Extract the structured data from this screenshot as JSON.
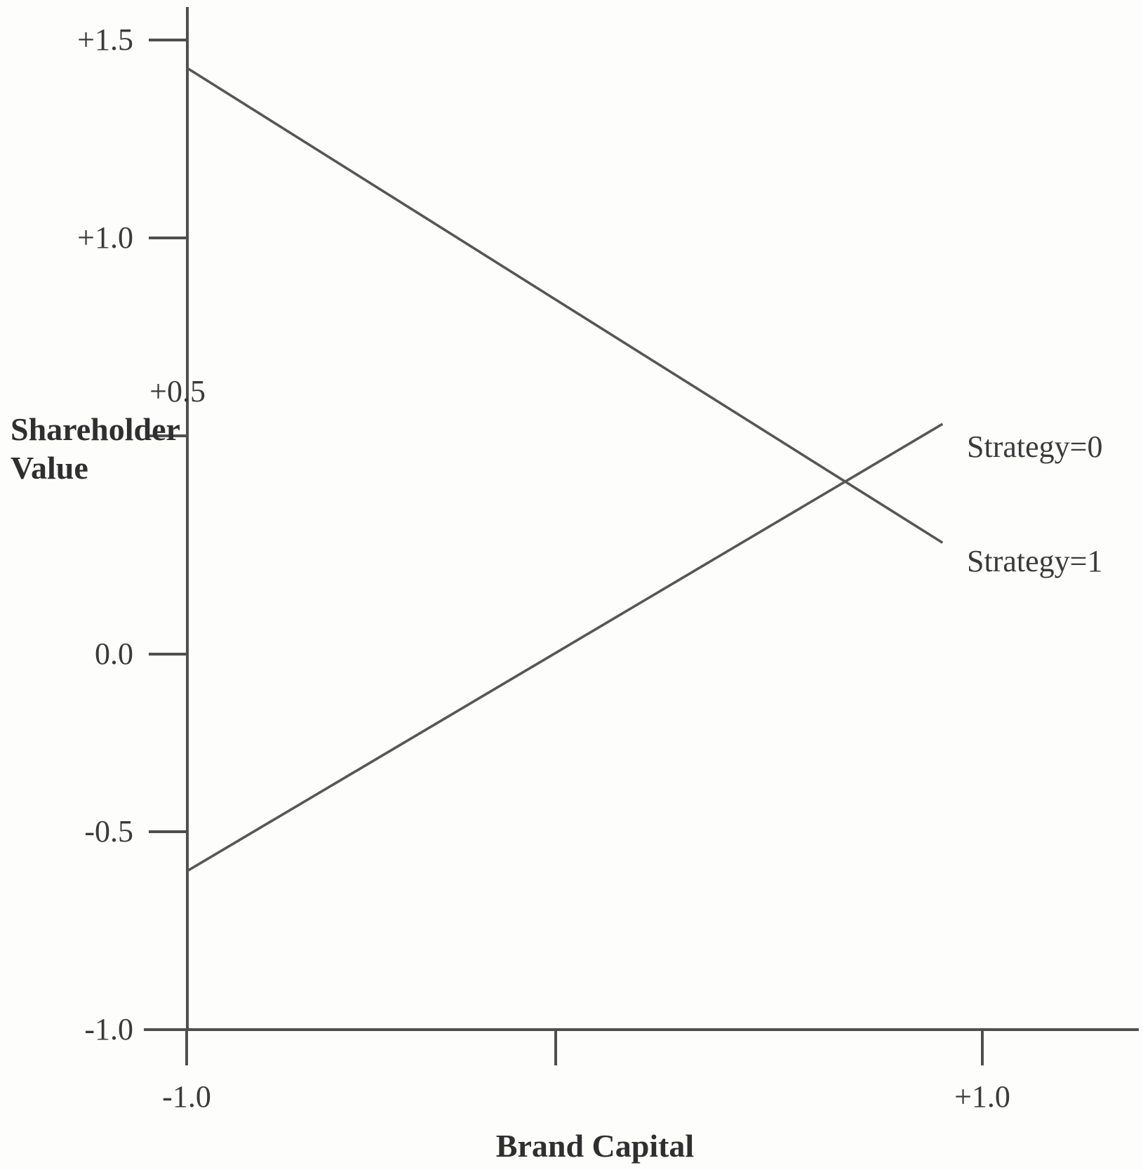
{
  "figure": {
    "background": "#fdfdfc",
    "axis_color": "#4f4f4f",
    "series_color": "#565656",
    "text_color": "#333333"
  },
  "chart_data": {
    "type": "line",
    "title": "",
    "xlabel": "Brand Capital",
    "ylabel": "Shareholder Value",
    "xlim": [
      -1.0,
      1.0
    ],
    "ylim": [
      -1.0,
      1.5
    ],
    "grid": false,
    "legend_position": "inline-right-of-lines",
    "x_ticks": [
      {
        "value": -1.0,
        "label": "-1.0"
      },
      {
        "value": 0.0,
        "label": ""
      },
      {
        "value": 1.0,
        "label": "+1.0"
      }
    ],
    "y_ticks": [
      {
        "value": 1.5,
        "label": "+1.5"
      },
      {
        "value": 1.0,
        "label": "+1.0"
      },
      {
        "value": 0.5,
        "label": "+0.5"
      },
      {
        "value": 0.0,
        "label": "0.0"
      },
      {
        "value": -0.5,
        "label": "-0.5"
      },
      {
        "value": -1.0,
        "label": "-1.0"
      }
    ],
    "series": [
      {
        "name": "Strategy=0",
        "points": [
          [
            -1.0,
            -0.6
          ],
          [
            0.9,
            0.53
          ]
        ]
      },
      {
        "name": "Strategy=1",
        "points": [
          [
            -1.0,
            1.43
          ],
          [
            0.9,
            0.23
          ]
        ]
      }
    ]
  }
}
